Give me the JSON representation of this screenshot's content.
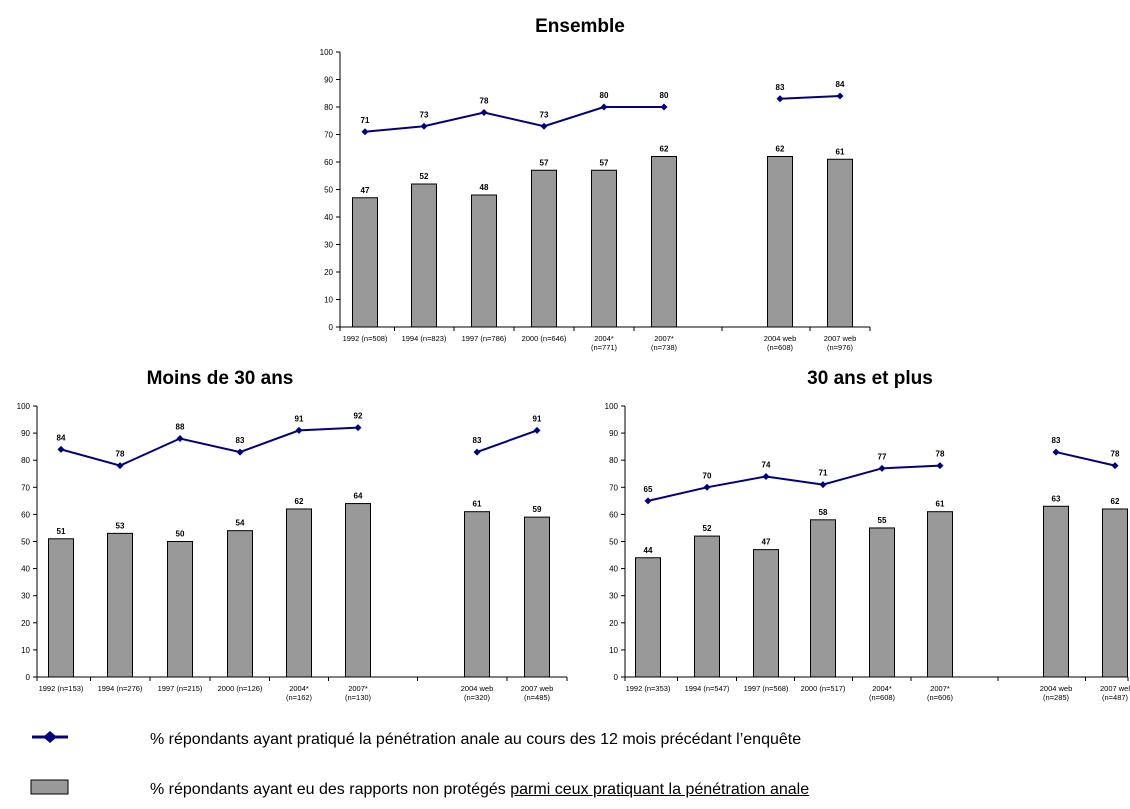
{
  "chart_data": [
    {
      "type": "bar",
      "title": "Ensemble",
      "ylim": [
        0,
        100
      ],
      "yticks": [
        0,
        10,
        20,
        30,
        40,
        50,
        60,
        70,
        80,
        90,
        100
      ],
      "categories": [
        [
          "1992 (n=508)"
        ],
        [
          "1994 (n=823)"
        ],
        [
          "1997 (n=786)"
        ],
        [
          "2000 (n=646)"
        ],
        [
          "2004*",
          "(n=771)"
        ],
        [
          "2007*",
          "(n=738)"
        ],
        [
          "2004 web",
          "(n=608)"
        ],
        [
          "2007 web",
          "(n=976)"
        ]
      ],
      "series": [
        {
          "type": "line",
          "values": [
            71,
            73,
            78,
            73,
            80,
            80,
            83,
            84
          ],
          "color": "#000080"
        },
        {
          "type": "bar",
          "values": [
            47,
            52,
            48,
            57,
            57,
            62,
            62,
            61
          ],
          "color": "#999999"
        }
      ],
      "line_segments": [
        [
          0,
          5
        ],
        [
          6,
          7
        ]
      ],
      "grid": false
    },
    {
      "type": "bar",
      "title": "Moins de 30 ans",
      "ylim": [
        0,
        100
      ],
      "yticks": [
        0,
        10,
        20,
        30,
        40,
        50,
        60,
        70,
        80,
        90,
        100
      ],
      "categories": [
        [
          "1992 (n=153)"
        ],
        [
          "1994 (n=276)"
        ],
        [
          "1997 (n=215)"
        ],
        [
          "2000 (n=126)"
        ],
        [
          "2004*",
          "(n=162)"
        ],
        [
          "2007*",
          "(n=130)"
        ],
        [
          "2004 web",
          "(n=320)"
        ],
        [
          "2007 web",
          "(n=485)"
        ]
      ],
      "series": [
        {
          "type": "line",
          "values": [
            84,
            78,
            88,
            83,
            91,
            92,
            83,
            91
          ],
          "color": "#000080"
        },
        {
          "type": "bar",
          "values": [
            51,
            53,
            50,
            54,
            62,
            64,
            61,
            59
          ],
          "color": "#999999"
        }
      ],
      "line_segments": [
        [
          0,
          5
        ],
        [
          6,
          7
        ]
      ],
      "grid": false
    },
    {
      "type": "bar",
      "title": "30 ans et plus",
      "ylim": [
        0,
        100
      ],
      "yticks": [
        0,
        10,
        20,
        30,
        40,
        50,
        60,
        70,
        80,
        90,
        100
      ],
      "categories": [
        [
          "1992 (n=353)"
        ],
        [
          "1994 (n=547)"
        ],
        [
          "1997 (n=568)"
        ],
        [
          "2000 (n=517)"
        ],
        [
          "2004*",
          "(n=608)"
        ],
        [
          "2007*",
          "(n=606)"
        ],
        [
          "2004 web",
          "(n=285)"
        ],
        [
          "2007 wel",
          "(n=487)"
        ]
      ],
      "series": [
        {
          "type": "line",
          "values": [
            65,
            70,
            74,
            71,
            77,
            78,
            83,
            78
          ],
          "color": "#000080"
        },
        {
          "type": "bar",
          "values": [
            44,
            52,
            47,
            58,
            55,
            61,
            63,
            62
          ],
          "color": "#999999"
        }
      ],
      "line_segments": [
        [
          0,
          5
        ],
        [
          6,
          7
        ]
      ],
      "grid": false
    }
  ],
  "legend": {
    "line_label": "% répondants ayant pratiqué la pénétration anale au cours des 12 mois précédant l’enquête",
    "bar_label_plain": "% répondants ayant eu des rapports non protégés ",
    "bar_label_underlined": "parmi ceux pratiquant la pénétration anale",
    "line_color": "#000080",
    "bar_color": "#999999"
  }
}
